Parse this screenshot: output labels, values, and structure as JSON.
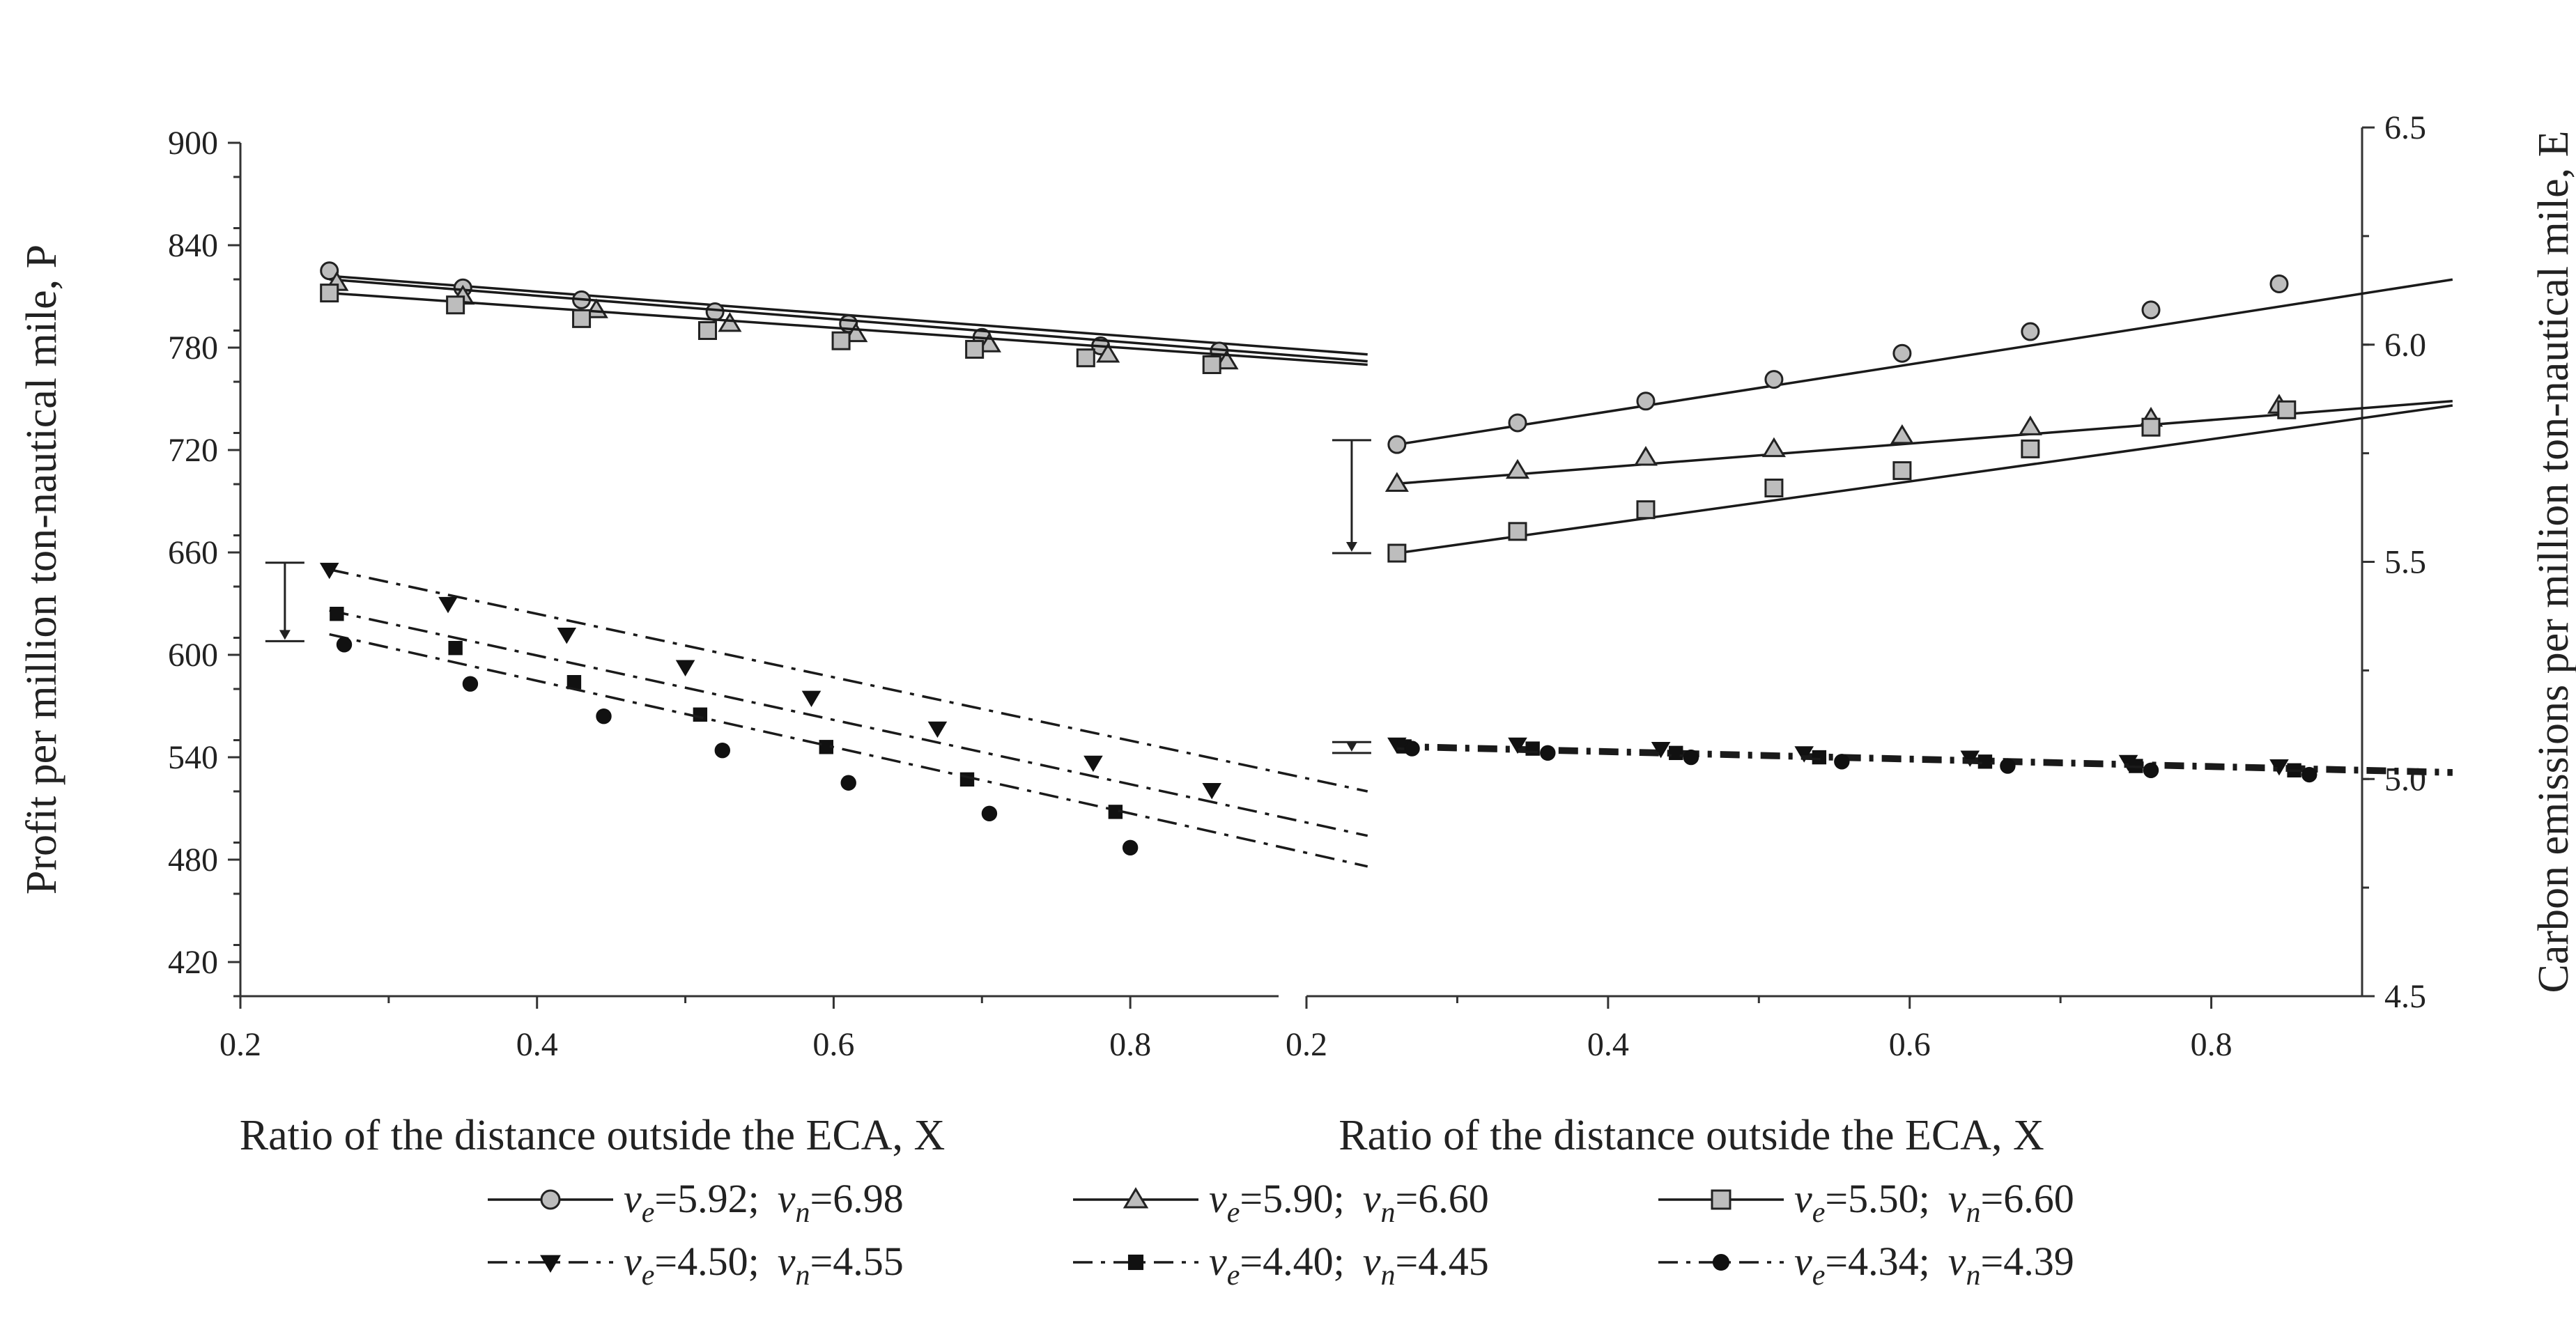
{
  "chart_data": [
    {
      "type": "line",
      "name": "profit",
      "xlabel": "Ratio of the distance outside the ECA, X",
      "ylabel": "Profit per million ton-nautical mile, P",
      "xlim": [
        0.2,
        0.9
      ],
      "ylim": [
        400,
        900
      ],
      "xticks": [
        "0.2",
        "0.4",
        "0.6",
        "0.8"
      ],
      "yticks": [
        "420",
        "480",
        "540",
        "600",
        "660",
        "720",
        "780",
        "840",
        "900"
      ],
      "series": [
        {
          "key": "s1",
          "x": [
            0.26,
            0.96
          ],
          "y": [
            822,
            776
          ],
          "points": {
            "x": [
              0.26,
              0.35,
              0.43,
              0.52,
              0.61,
              0.7,
              0.78,
              0.86
            ],
            "y": [
              825,
              815,
              808,
              801,
              794,
              786,
              781,
              778
            ]
          }
        },
        {
          "key": "s2",
          "x": [
            0.26,
            0.96
          ],
          "y": [
            820,
            772
          ],
          "points": {
            "x": [
              0.265,
              0.35,
              0.44,
              0.53,
              0.615,
              0.705,
              0.785,
              0.865
            ],
            "y": [
              818,
              810,
              802,
              794,
              788,
              782,
              776,
              772
            ]
          }
        },
        {
          "key": "s3",
          "x": [
            0.26,
            0.96
          ],
          "y": [
            812,
            770
          ],
          "points": {
            "x": [
              0.26,
              0.345,
              0.43,
              0.515,
              0.605,
              0.695,
              0.77,
              0.855
            ],
            "y": [
              812,
              805,
              797,
              790,
              784,
              779,
              774,
              770
            ]
          }
        },
        {
          "key": "s4",
          "x": [
            0.26,
            0.96
          ],
          "y": [
            650,
            520
          ],
          "points": {
            "x": [
              0.26,
              0.34,
              0.42,
              0.5,
              0.585,
              0.67,
              0.775,
              0.855
            ],
            "y": [
              650,
              630,
              612,
              593,
              575,
              557,
              537,
              521
            ]
          }
        },
        {
          "key": "s5",
          "x": [
            0.26,
            0.96
          ],
          "y": [
            626,
            494
          ],
          "points": {
            "x": [
              0.265,
              0.345,
              0.425,
              0.51,
              0.595,
              0.69,
              0.79
            ],
            "y": [
              624,
              604,
              584,
              565,
              546,
              527,
              508
            ]
          }
        },
        {
          "key": "s6",
          "x": [
            0.26,
            0.96
          ],
          "y": [
            612,
            476
          ],
          "points": {
            "x": [
              0.27,
              0.355,
              0.445,
              0.525,
              0.61,
              0.705,
              0.8
            ],
            "y": [
              606,
              583,
              564,
              544,
              525,
              507,
              487
            ]
          }
        }
      ],
      "annotation": {
        "x": 0.23,
        "y_from": 654,
        "y_to": 608
      }
    },
    {
      "type": "line",
      "name": "emissions",
      "xlabel": "Ratio of the distance outside the ECA, X",
      "ylabel": "Carbon emissions per million ton-nautical mile, E",
      "xlim": [
        0.2,
        0.9
      ],
      "ylim": [
        4.5,
        6.5
      ],
      "xticks": [
        "0.2",
        "0.4",
        "0.6",
        "0.8"
      ],
      "yticks": [
        "4.5",
        "5.0",
        "5.5",
        "6.0",
        "6.5"
      ],
      "series": [
        {
          "key": "s1",
          "x": [
            0.26,
            0.96
          ],
          "y": [
            5.77,
            6.15
          ],
          "points": {
            "x": [
              0.26,
              0.34,
              0.425,
              0.51,
              0.595,
              0.68,
              0.76,
              0.845
            ],
            "y": [
              5.77,
              5.82,
              5.87,
              5.92,
              5.98,
              6.03,
              6.08,
              6.14
            ]
          }
        },
        {
          "key": "s2",
          "x": [
            0.26,
            0.96
          ],
          "y": [
            5.68,
            5.87
          ],
          "points": {
            "x": [
              0.26,
              0.34,
              0.425,
              0.51,
              0.595,
              0.68,
              0.76,
              0.845
            ],
            "y": [
              5.68,
              5.71,
              5.74,
              5.76,
              5.79,
              5.81,
              5.83,
              5.86
            ]
          }
        },
        {
          "key": "s3",
          "x": [
            0.26,
            0.96
          ],
          "y": [
            5.52,
            5.86
          ],
          "points": {
            "x": [
              0.26,
              0.34,
              0.425,
              0.51,
              0.595,
              0.68,
              0.76,
              0.85
            ],
            "y": [
              5.52,
              5.57,
              5.62,
              5.67,
              5.71,
              5.76,
              5.81,
              5.85
            ]
          }
        },
        {
          "key": "s4",
          "x": [
            0.26,
            0.96
          ],
          "y": [
            5.08,
            5.02
          ],
          "points": {
            "x": [
              0.26,
              0.34,
              0.435,
              0.53,
              0.64,
              0.745,
              0.845
            ],
            "y": [
              5.08,
              5.08,
              5.07,
              5.06,
              5.05,
              5.04,
              5.03
            ]
          }
        },
        {
          "key": "s5",
          "x": [
            0.26,
            0.96
          ],
          "y": [
            5.075,
            5.015
          ],
          "points": {
            "x": [
              0.265,
              0.35,
              0.445,
              0.54,
              0.65,
              0.75,
              0.855
            ],
            "y": [
              5.075,
              5.07,
              5.06,
              5.05,
              5.04,
              5.03,
              5.02
            ]
          }
        },
        {
          "key": "s6",
          "x": [
            0.26,
            0.96
          ],
          "y": [
            5.07,
            5.01
          ],
          "points": {
            "x": [
              0.27,
              0.36,
              0.455,
              0.555,
              0.665,
              0.76,
              0.865
            ],
            "y": [
              5.07,
              5.06,
              5.05,
              5.04,
              5.03,
              5.02,
              5.01
            ]
          }
        }
      ],
      "annotations": [
        {
          "x": 0.23,
          "y_from": 5.78,
          "y_to": 5.52
        },
        {
          "x": 0.23,
          "y_from": 5.085,
          "y_to": 5.06
        }
      ]
    }
  ],
  "legend": [
    {
      "key": "s1",
      "marker": "circle",
      "dash": "solid",
      "ve": "=5.92;",
      "vn": "=6.98"
    },
    {
      "key": "s2",
      "marker": "triangle-up",
      "dash": "solid",
      "ve": "=5.90;",
      "vn": "=6.60"
    },
    {
      "key": "s3",
      "marker": "square",
      "dash": "solid",
      "ve": "=5.50;",
      "vn": "=6.60"
    },
    {
      "key": "s4",
      "marker": "triangle-down-filled",
      "dash": "dashdot",
      "ve": "=4.50;",
      "vn": "=4.55"
    },
    {
      "key": "s5",
      "marker": "square-filled",
      "dash": "dashdot",
      "ve": "=4.40;",
      "vn": "=4.45"
    },
    {
      "key": "s6",
      "marker": "circle-filled",
      "dash": "dashdot",
      "ve": "=4.34;",
      "vn": "=4.39"
    }
  ],
  "symbols": {
    "v": "v",
    "e": "e",
    "n": "n"
  },
  "colors": {
    "line": "#1a1a1a",
    "marker_fill_open": "#bdbdbd",
    "marker_fill_solid": "#111111"
  }
}
